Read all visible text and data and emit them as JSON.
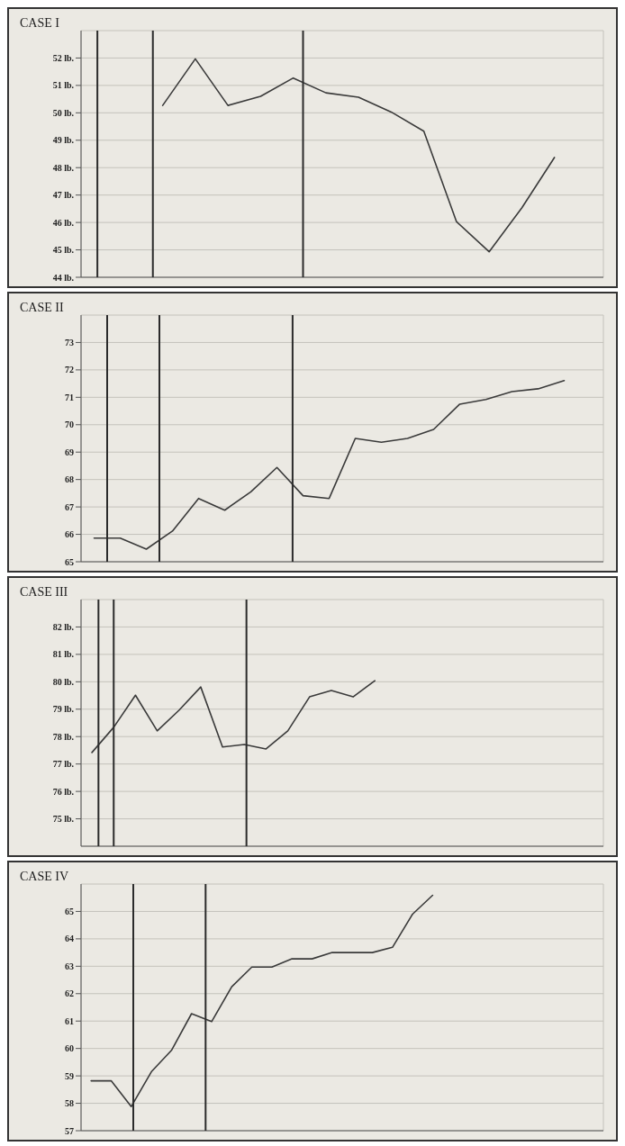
{
  "chart_data": [
    {
      "type": "line",
      "title": "CASE I",
      "marker": "none",
      "grid": true,
      "tick_labels": "y",
      "ylim": [
        44,
        53
      ],
      "categories": [
        null,
        null,
        null,
        null,
        null,
        null,
        null,
        null,
        null,
        null,
        null,
        null,
        null,
        null,
        null,
        null
      ],
      "yticks": [
        {
          "value": 44,
          "label": "44 lb."
        },
        {
          "value": 45,
          "label": "45 lb."
        },
        {
          "value": 46,
          "label": "46 lb."
        },
        {
          "value": 47,
          "label": "47 lb."
        },
        {
          "value": 48,
          "label": "48 lb."
        },
        {
          "value": 49,
          "label": "49 lb."
        },
        {
          "value": 50,
          "label": "50 lb."
        },
        {
          "value": 51,
          "label": "51 lb."
        },
        {
          "value": 52,
          "label": "52 lb."
        }
      ],
      "series": [
        {
          "color": "#3a3a3a",
          "values": [
            null,
            null,
            50.27,
            51.97,
            50.27,
            50.6,
            51.27,
            50.73,
            50.57,
            50.03,
            49.33,
            46.03,
            44.93,
            46.53,
            48.37,
            null
          ]
        }
      ]
    },
    {
      "type": "line",
      "title": "CASE II",
      "marker": "none",
      "grid": true,
      "tick_labels": "y",
      "ylim": [
        65,
        74
      ],
      "categories": [
        null,
        null,
        null,
        null,
        null,
        null,
        null,
        null,
        null,
        null,
        null,
        null,
        null,
        null,
        null,
        null,
        null,
        null,
        null,
        null
      ],
      "yticks": [
        65,
        66,
        67,
        68,
        69,
        70,
        71,
        72,
        73
      ],
      "series": [
        {
          "color": "#3a3a3a",
          "values": [
            65.86,
            65.86,
            65.46,
            66.12,
            67.31,
            66.88,
            67.55,
            68.44,
            67.41,
            67.31,
            69.5,
            69.36,
            69.5,
            69.83,
            70.75,
            70.92,
            71.21,
            71.31,
            71.61,
            null
          ]
        }
      ]
    },
    {
      "type": "line",
      "title": "CASE III",
      "marker": "none",
      "grid": true,
      "tick_labels": "y",
      "ylim": [
        74,
        83
      ],
      "categories": [
        null,
        null,
        null,
        null,
        null,
        null,
        null,
        null,
        null,
        null,
        null,
        null,
        null,
        null,
        null,
        null,
        null,
        null,
        null,
        null,
        null,
        null,
        null,
        null
      ],
      "yticks": [
        {
          "value": 75,
          "label": "75 lb."
        },
        {
          "value": 76,
          "label": "76 lb."
        },
        {
          "value": 77,
          "label": "77 lb."
        },
        {
          "value": 78,
          "label": "78 lb."
        },
        {
          "value": 79,
          "label": "79 lb."
        },
        {
          "value": 80,
          "label": "80 lb."
        },
        {
          "value": 81,
          "label": "81 lb."
        },
        {
          "value": 82,
          "label": "82 lb."
        }
      ],
      "series": [
        {
          "color": "#3a3a3a",
          "values": [
            77.42,
            78.34,
            79.51,
            78.21,
            78.96,
            79.81,
            77.62,
            77.71,
            77.55,
            78.21,
            79.45,
            79.68,
            79.45,
            80.04,
            null,
            null,
            null,
            null,
            null,
            null,
            null,
            null,
            null,
            null
          ]
        }
      ]
    },
    {
      "type": "line",
      "title": "CASE IV",
      "marker": "none",
      "grid": true,
      "tick_labels": "y",
      "ylim": [
        57,
        66
      ],
      "categories": [
        null,
        null,
        null,
        null,
        null,
        null,
        null,
        null,
        null,
        null,
        null,
        null,
        null,
        null,
        null,
        null,
        null,
        null,
        null,
        null,
        null,
        null,
        null,
        null,
        null,
        null
      ],
      "yticks": [
        57,
        58,
        59,
        60,
        61,
        62,
        63,
        64,
        65
      ],
      "series": [
        {
          "color": "#3a3a3a",
          "values": [
            58.82,
            58.82,
            57.88,
            59.15,
            59.93,
            61.27,
            60.98,
            62.25,
            62.97,
            62.97,
            63.27,
            63.27,
            63.5,
            63.5,
            63.5,
            63.69,
            64.9,
            65.59,
            null,
            null,
            null,
            null,
            null,
            null,
            null,
            null
          ]
        }
      ]
    }
  ]
}
